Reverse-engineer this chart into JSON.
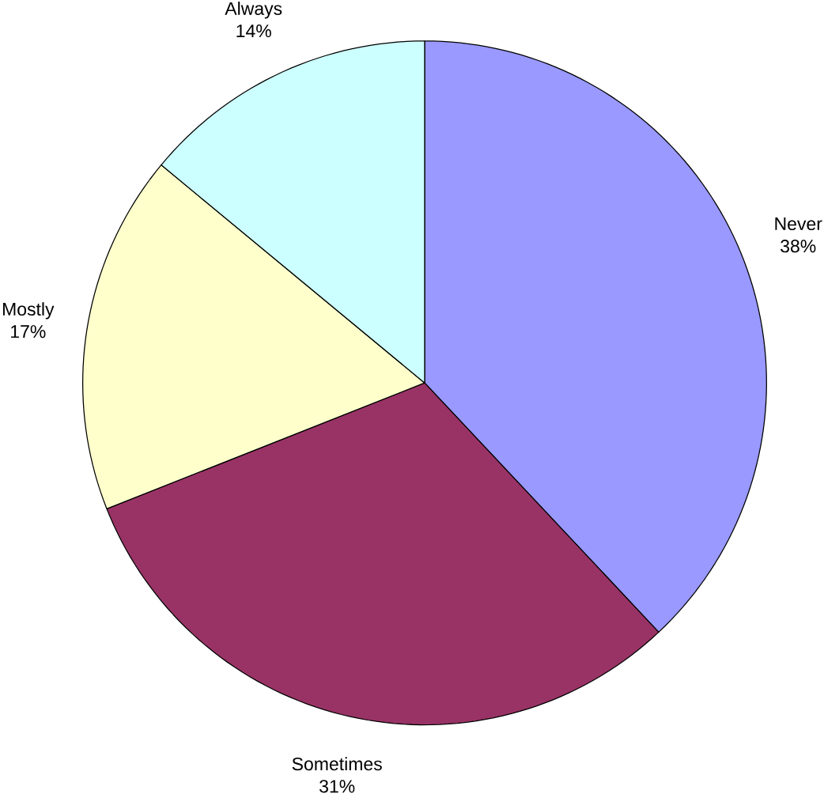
{
  "chart_data": {
    "type": "pie",
    "categories": [
      "Never",
      "Sometimes",
      "Mostly",
      "Always"
    ],
    "values": [
      38,
      31,
      17,
      14
    ],
    "value_labels": [
      "38%",
      "31%",
      "17%",
      "14%"
    ],
    "colors": [
      "#9999ff",
      "#993366",
      "#ffffcc",
      "#ccffff"
    ]
  }
}
